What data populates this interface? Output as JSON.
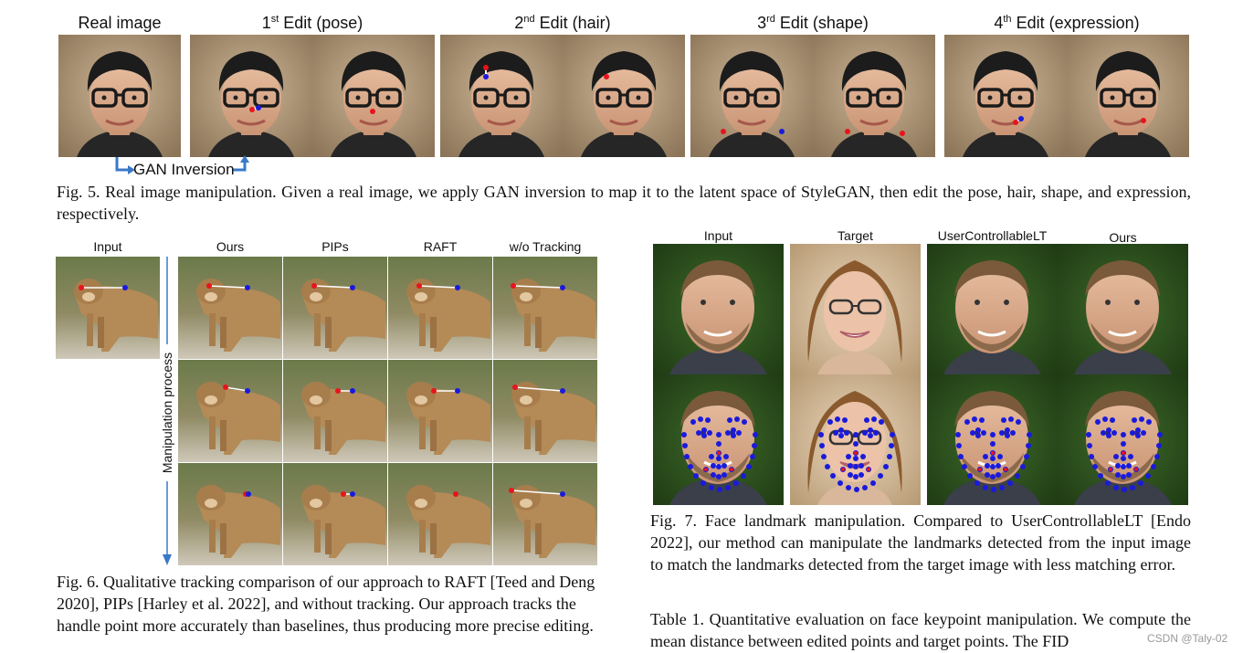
{
  "fig5": {
    "labels": {
      "real": "Real image",
      "e1_num": "1",
      "e1_sup": "st",
      "e1_rest": " Edit (pose)",
      "e2_num": "2",
      "e2_sup": "nd",
      "e2_rest": " Edit (hair)",
      "e3_num": "3",
      "e3_sup": "rd",
      "e3_rest": " Edit (shape)",
      "e4_num": "4",
      "e4_sup": "th",
      "e4_rest": " Edit (expression)"
    },
    "inversion_label": "GAN Inversion",
    "caption": "Fig. 5.  Real image manipulation. Given a real image, we apply GAN inversion to map it to the latent space of StyleGAN, then edit the pose, hair, shape, and expression, respectively."
  },
  "fig6": {
    "columns": [
      "Input",
      "Ours",
      "PIPs",
      "RAFT",
      "w/o Tracking"
    ],
    "axis_label": "Manipulation process",
    "caption": "Fig. 6.  Qualitative tracking comparison of our approach to RAFT [Teed and Deng 2020], PIPs [Harley et al. 2022], and without tracking. Our approach tracks the handle point more accurately than baselines, thus producing more precise editing."
  },
  "fig7": {
    "columns": [
      "Input",
      "Target",
      "UserControllableLT",
      "Ours"
    ],
    "caption": "Fig.  7. Face  landmark  manipulation.  Compared  to  UserControllableLT [Endo 2022], our method can manipulate the landmarks detected from the input image to match the landmarks detected from the target image with less matching error."
  },
  "table1": {
    "caption": "Table 1.  Quantitative evaluation on face keypoint manipulation. We compute the mean distance between edited points and target points. The FID"
  },
  "watermark": "CSDN @Taly-02",
  "colors": {
    "handle": "#e8141c",
    "target": "#1a1adc",
    "arrow": "#3a78c8"
  }
}
